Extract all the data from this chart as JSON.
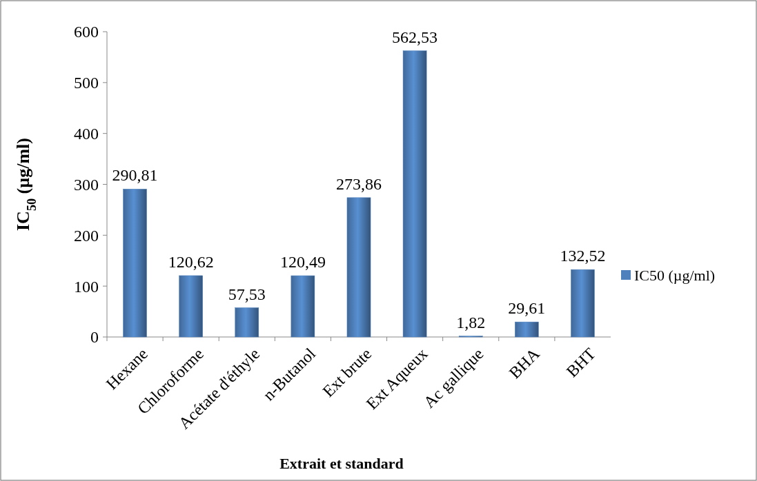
{
  "chart_data": {
    "type": "bar",
    "xlabel": "Extrait et standard",
    "ylabel": "IC$_{50}$ (µg/ml)",
    "categories": [
      "Hexane",
      "Chloroforme",
      "Acétate d'éthyle",
      "n-Butanol",
      "Ext brute",
      "Ext Aqueux",
      "Ac gallique",
      "BHA",
      "BHT"
    ],
    "series": [
      {
        "name": "IC50 (µg/ml)",
        "color": "#4f81bd",
        "values": [
          290.81,
          120.62,
          57.53,
          120.49,
          273.86,
          562.53,
          1.82,
          29.61,
          132.52
        ],
        "value_labels": [
          "290,81",
          "120,62",
          "57,53",
          "120,49",
          "273,86",
          "562,53",
          "1,82",
          "29,61",
          "132,52"
        ]
      }
    ],
    "ylim": [
      0,
      600
    ],
    "yticks": [
      0,
      100,
      200,
      300,
      400,
      500,
      600
    ],
    "grid": false,
    "legend": "right"
  }
}
